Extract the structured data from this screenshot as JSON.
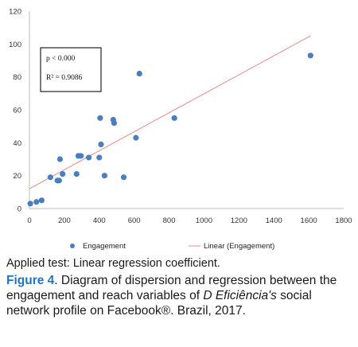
{
  "chart_data": {
    "type": "scatter",
    "title": "",
    "xlabel": "",
    "ylabel": "",
    "xlim": [
      0,
      1800
    ],
    "ylim": [
      0,
      120
    ],
    "x_ticks": [
      0,
      200,
      400,
      600,
      800,
      1000,
      1200,
      1400,
      1600,
      1800
    ],
    "y_ticks": [
      0,
      20,
      40,
      60,
      80,
      100,
      120
    ],
    "grid": false,
    "series": [
      {
        "name": "Engagement",
        "color": "#4a7ec2",
        "points": [
          [
            5,
            3
          ],
          [
            40,
            4
          ],
          [
            70,
            5
          ],
          [
            120,
            19
          ],
          [
            160,
            17
          ],
          [
            170,
            17
          ],
          [
            175,
            30
          ],
          [
            190,
            21
          ],
          [
            270,
            21
          ],
          [
            280,
            32
          ],
          [
            295,
            32
          ],
          [
            340,
            31
          ],
          [
            400,
            31
          ],
          [
            405,
            55
          ],
          [
            410,
            39
          ],
          [
            430,
            20
          ],
          [
            480,
            54
          ],
          [
            485,
            52
          ],
          [
            540,
            19
          ],
          [
            610,
            43
          ],
          [
            630,
            82
          ],
          [
            830,
            55
          ],
          [
            1610,
            93
          ]
        ]
      }
    ],
    "trendline": {
      "name": "Linear (Engagement)",
      "color": "#e88a8a",
      "from": [
        0,
        12
      ],
      "to": [
        1610,
        105
      ]
    },
    "stats": {
      "p": "p < 0.000",
      "r2": "R² = 0.9086"
    },
    "legend": {
      "placement": "bottom",
      "entries": [
        "Engagement",
        "Linear (Engagement)"
      ]
    }
  },
  "caption": {
    "applied_test": "Applied test: Linear regression coefficient.",
    "figure_label": "Figure 4",
    "figure_text_1": ". Diagram of dispersion and regression between the engagement and reach variables of ",
    "figure_text_italic": "D Eficiência's",
    "figure_text_2": " social network profile on Facebook®. Brazil, 2017."
  }
}
